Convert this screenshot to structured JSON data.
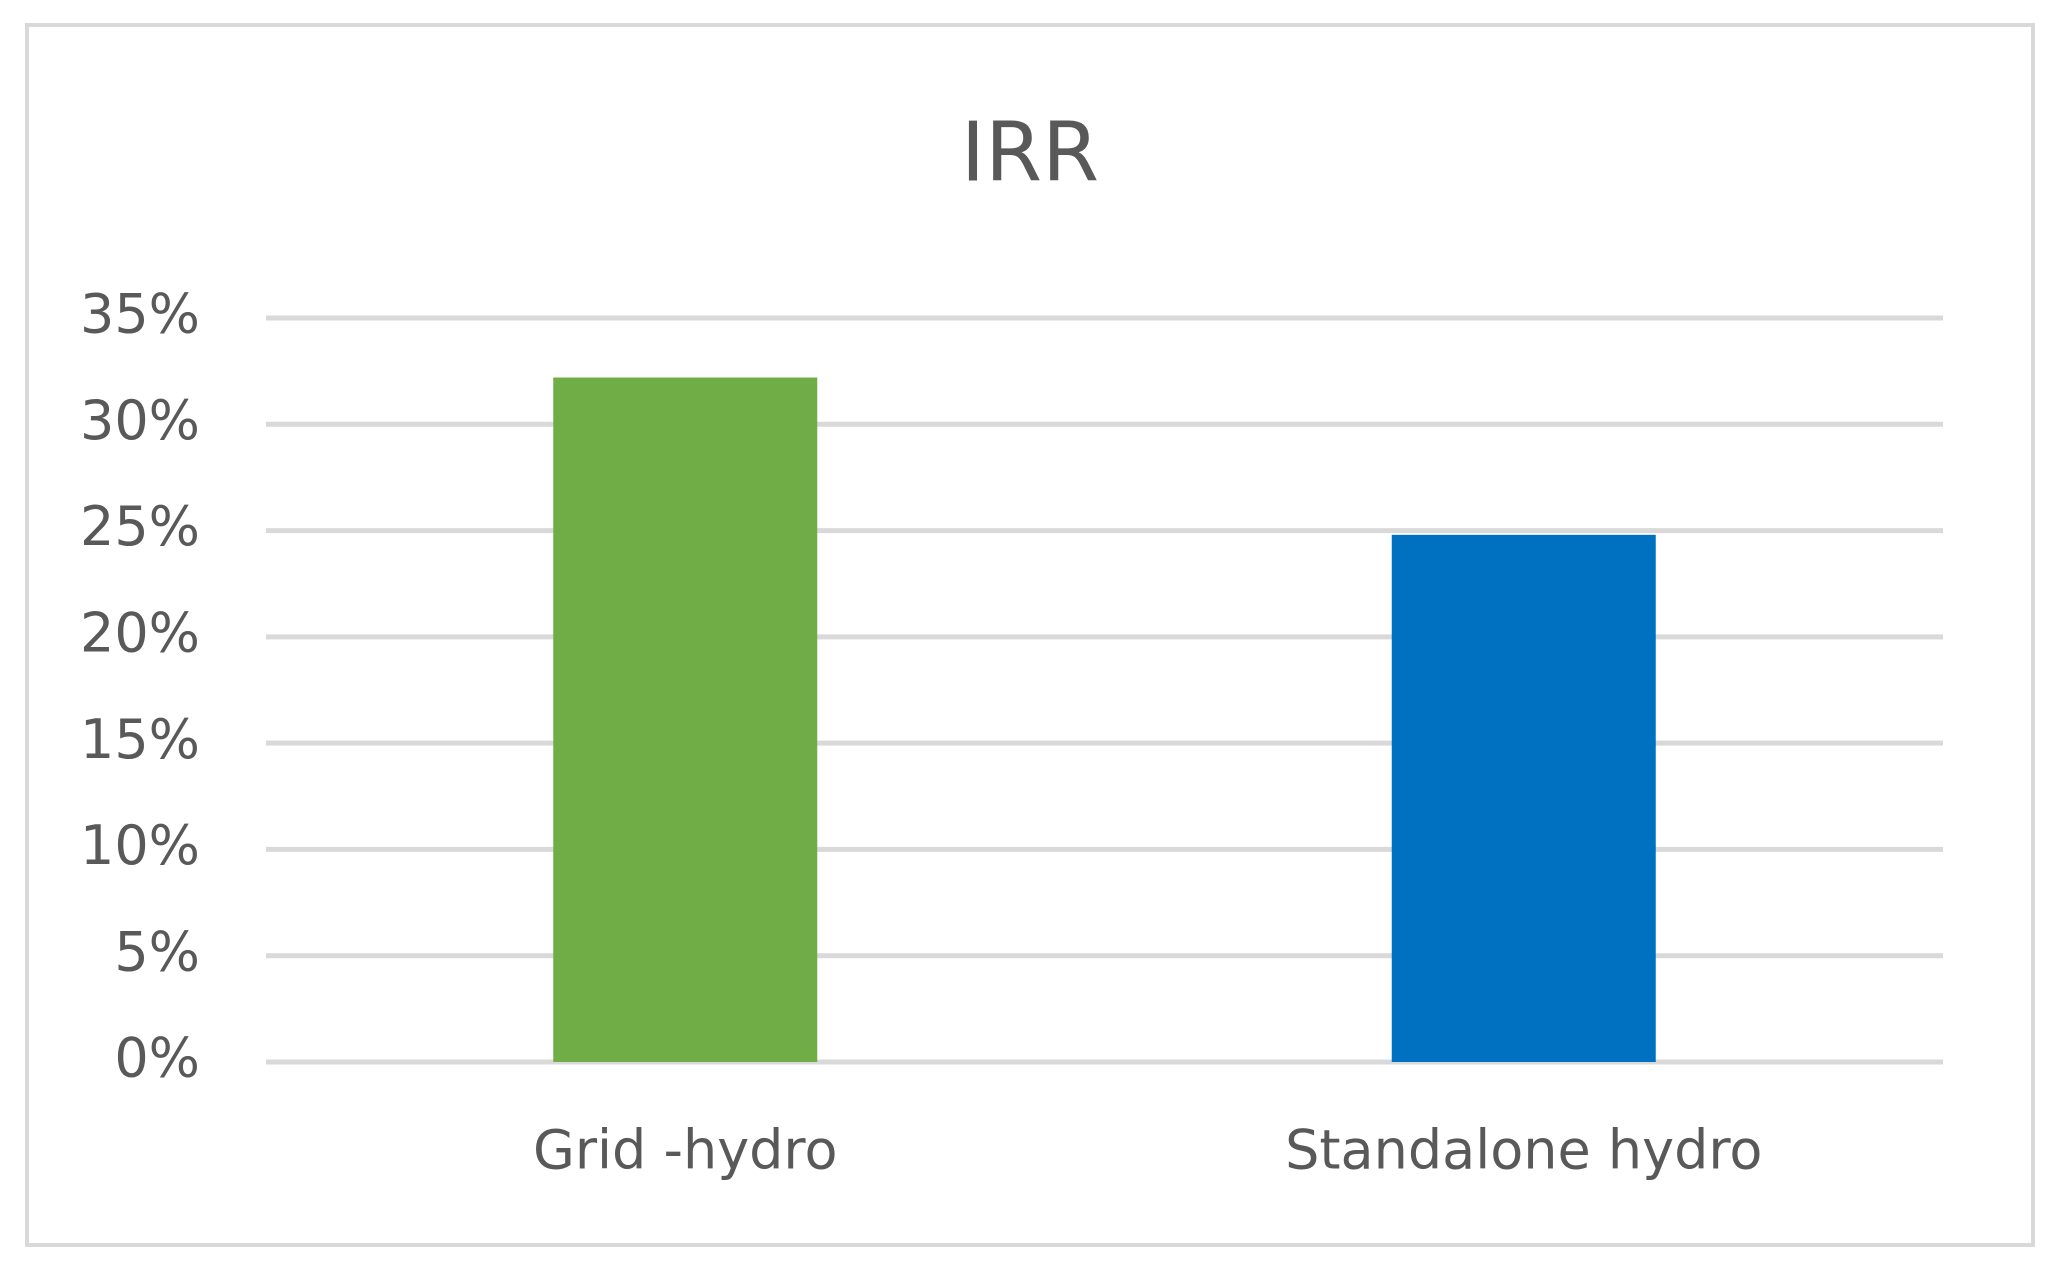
{
  "chart_data": {
    "type": "bar",
    "title": "IRR",
    "categories": [
      "Grid -hydro",
      "Standalone hydro"
    ],
    "values": [
      32.2,
      24.8
    ],
    "colors": [
      "#70ad47",
      "#0070c0"
    ],
    "ylim": [
      0,
      35
    ],
    "yticks": [
      {
        "value": 0,
        "label": "0%"
      },
      {
        "value": 5,
        "label": "5%"
      },
      {
        "value": 10,
        "label": "10%"
      },
      {
        "value": 15,
        "label": "15%"
      },
      {
        "value": 20,
        "label": "20%"
      },
      {
        "value": 25,
        "label": "25%"
      },
      {
        "value": 30,
        "label": "30%"
      },
      {
        "value": 35,
        "label": "35%"
      }
    ],
    "grid": true
  }
}
